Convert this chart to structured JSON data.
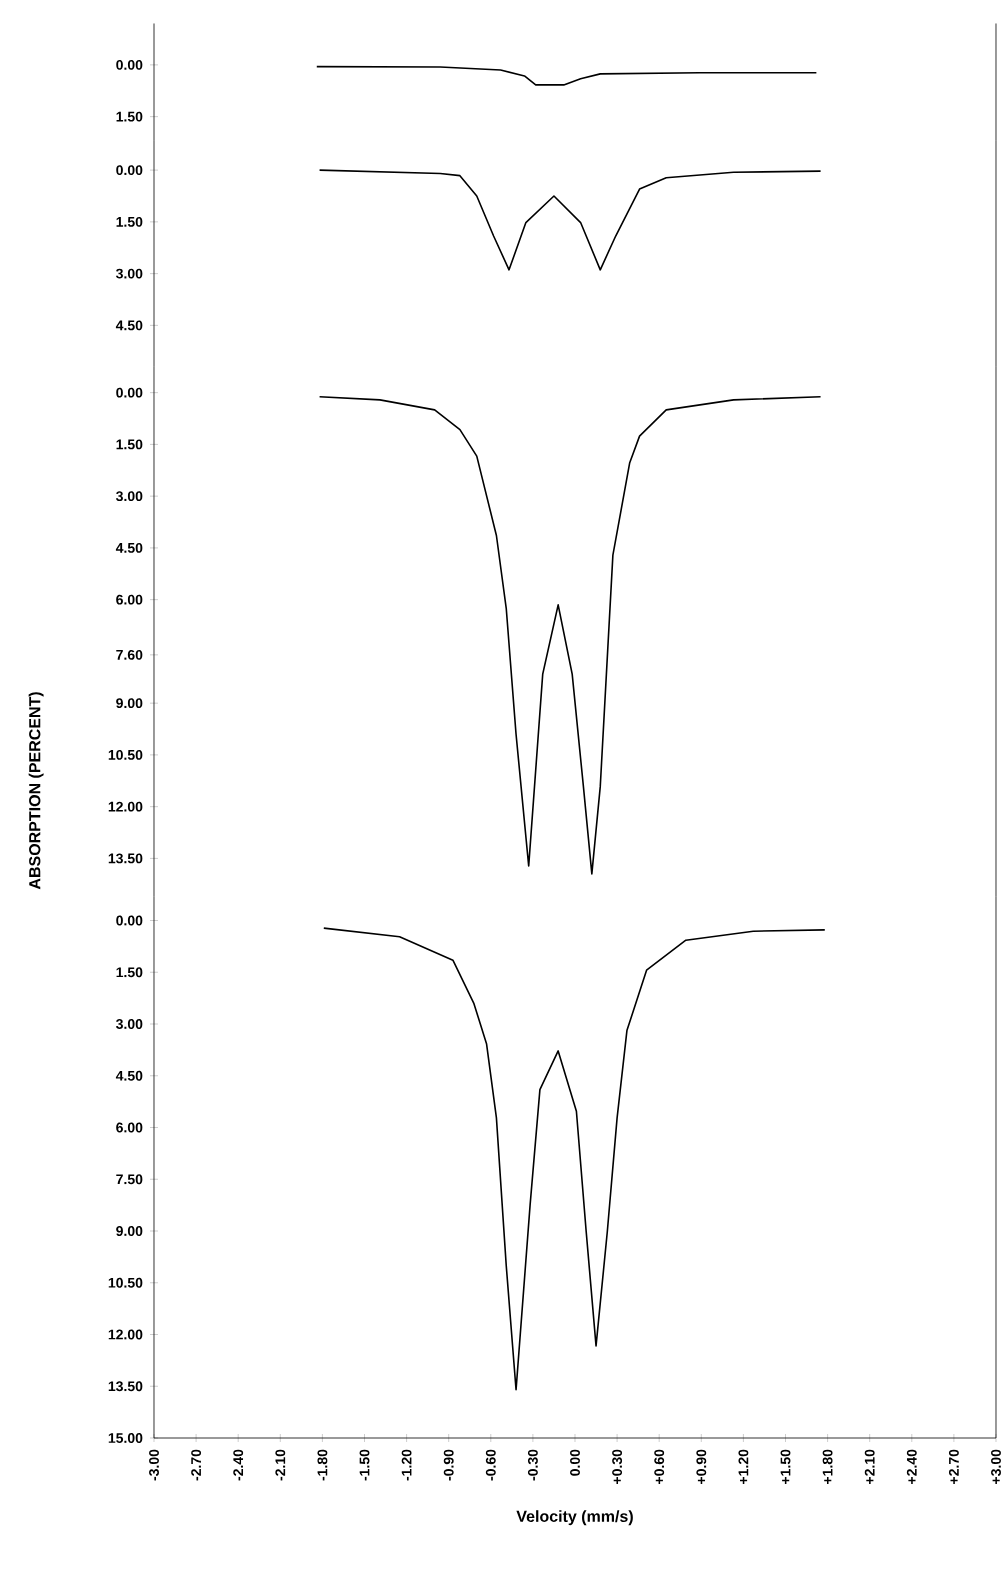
{
  "chart_data": [
    {
      "type": "line",
      "tick_labels": "y",
      "xlim": [
        -3.0,
        3.0
      ],
      "ylim": [
        2.2,
        -1.2
      ],
      "yticks": [
        {
          "value": 0,
          "label": "0.00"
        },
        {
          "value": 1.5,
          "label": "1.50"
        }
      ],
      "x": [
        -1.84,
        -0.96,
        -0.53,
        -0.36,
        -0.28,
        -0.08,
        0.04,
        0.18,
        0.89,
        1.72
      ],
      "series": [
        {
          "color": "#000000",
          "values": [
            0.05,
            0.06,
            0.15,
            0.32,
            0.58,
            0.58,
            0.4,
            0.26,
            0.23,
            0.23
          ]
        }
      ]
    },
    {
      "type": "line",
      "tick_labels": "y",
      "xlim": [
        -3.0,
        3.0
      ],
      "ylim": [
        5.7,
        -0.85
      ],
      "yticks": [
        {
          "value": 0,
          "label": "0.00"
        },
        {
          "value": 1.5,
          "label": "1.50"
        },
        {
          "value": 3,
          "label": "3.00"
        },
        {
          "value": 4.5,
          "label": "4.50"
        }
      ],
      "x": [
        -1.82,
        -0.96,
        -0.82,
        -0.7,
        -0.58,
        -0.47,
        -0.35,
        -0.15,
        0.04,
        0.18,
        0.29,
        0.46,
        0.65,
        1.13,
        1.75
      ],
      "series": [
        {
          "color": "#000000",
          "values": [
            0.0,
            0.1,
            0.16,
            0.75,
            1.91,
            2.89,
            1.52,
            0.75,
            1.52,
            2.89,
            1.91,
            0.55,
            0.22,
            0.06,
            0.03
          ]
        }
      ]
    },
    {
      "type": "line",
      "tick_labels": "y",
      "xlim": [
        -3.0,
        3.0
      ],
      "ylim": [
        14.6,
        -0.75
      ],
      "ylabel": "ABSORPTION (PERCENT)",
      "yticks": [
        {
          "value": 0,
          "label": "0.00"
        },
        {
          "value": 1.5,
          "label": "1.50"
        },
        {
          "value": 3,
          "label": "3.00"
        },
        {
          "value": 4.5,
          "label": "4.50"
        },
        {
          "value": 6,
          "label": "6.00"
        },
        {
          "value": 7.6,
          "label": "7.60"
        },
        {
          "value": 9,
          "label": "9.00"
        },
        {
          "value": 10.5,
          "label": "10.50"
        },
        {
          "value": 12,
          "label": "12.00"
        },
        {
          "value": 13.5,
          "label": "13.50"
        }
      ],
      "x": [
        -1.82,
        -1.39,
        -1.0,
        -0.82,
        -0.7,
        -0.56,
        -0.49,
        -0.42,
        -0.33,
        -0.23,
        -0.12,
        -0.02,
        0.06,
        0.12,
        0.18,
        0.27,
        0.39,
        0.46,
        0.65,
        1.13,
        1.75
      ],
      "series": [
        {
          "color": "#000000",
          "values": [
            0.12,
            0.21,
            0.5,
            1.07,
            1.84,
            4.14,
            6.25,
            9.9,
            13.72,
            8.16,
            6.15,
            8.16,
            11.42,
            13.95,
            11.42,
            4.71,
            2.03,
            1.26,
            0.5,
            0.21,
            0.12
          ]
        }
      ]
    },
    {
      "type": "line",
      "xlim": [
        -3.0,
        3.0
      ],
      "ylim": [
        15.0,
        -0.7
      ],
      "xlabel": "Velocity (mm/s)",
      "yticks": [
        {
          "value": 0,
          "label": "0.00"
        },
        {
          "value": 1.5,
          "label": "1.50"
        },
        {
          "value": 3,
          "label": "3.00"
        },
        {
          "value": 4.5,
          "label": "4.50"
        },
        {
          "value": 6,
          "label": "6.00"
        },
        {
          "value": 7.5,
          "label": "7.50"
        },
        {
          "value": 9,
          "label": "9.00"
        },
        {
          "value": 10.5,
          "label": "10.50"
        },
        {
          "value": 12,
          "label": "12.00"
        },
        {
          "value": 13.5,
          "label": "13.50"
        },
        {
          "value": 15,
          "label": "15.00"
        }
      ],
      "xticks": [
        {
          "value": -3.0,
          "label": "-3.00"
        },
        {
          "value": -2.7,
          "label": "-2.70"
        },
        {
          "value": -2.4,
          "label": "-2.40"
        },
        {
          "value": -2.1,
          "label": "-2.10"
        },
        {
          "value": -1.8,
          "label": "-1.80"
        },
        {
          "value": -1.5,
          "label": "-1.50"
        },
        {
          "value": -1.2,
          "label": "-1.20"
        },
        {
          "value": -0.9,
          "label": "-0.90"
        },
        {
          "value": -0.6,
          "label": "-0.60"
        },
        {
          "value": -0.3,
          "label": "-0.30"
        },
        {
          "value": 0.0,
          "label": "0.00"
        },
        {
          "value": 0.3,
          "label": "+0.30"
        },
        {
          "value": 0.6,
          "label": "+0.60"
        },
        {
          "value": 0.9,
          "label": "+0.90"
        },
        {
          "value": 1.2,
          "label": "+1.20"
        },
        {
          "value": 1.5,
          "label": "+1.50"
        },
        {
          "value": 1.8,
          "label": "+1.80"
        },
        {
          "value": 2.1,
          "label": "+2.10"
        },
        {
          "value": 2.4,
          "label": "+2.40"
        },
        {
          "value": 2.7,
          "label": "+2.70"
        },
        {
          "value": 3.0,
          "label": "+3.00"
        }
      ],
      "x": [
        -1.79,
        -1.25,
        -0.87,
        -0.72,
        -0.63,
        -0.56,
        -0.49,
        -0.42,
        -0.32,
        -0.25,
        -0.12,
        0.01,
        0.08,
        0.15,
        0.23,
        0.3,
        0.37,
        0.51,
        0.79,
        1.27,
        1.78
      ],
      "series": [
        {
          "color": "#000000",
          "values": [
            0.22,
            0.47,
            1.15,
            2.41,
            3.58,
            5.72,
            10.0,
            13.6,
            8.25,
            4.9,
            3.78,
            5.53,
            9.03,
            12.33,
            9.03,
            5.72,
            3.19,
            1.44,
            0.57,
            0.31,
            0.27
          ]
        }
      ]
    }
  ]
}
